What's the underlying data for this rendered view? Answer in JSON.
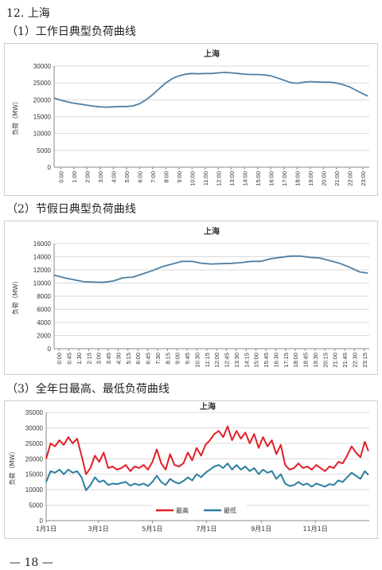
{
  "page": {
    "section_title": "12. 上海",
    "footer": "— 18 —"
  },
  "charts_meta": [
    {
      "heading": "（1）工作日典型负荷曲线"
    },
    {
      "heading": "（2）节假日典型负荷曲线"
    },
    {
      "heading": "（3）全年日最高、最低负荷曲线"
    }
  ],
  "chart_data": [
    {
      "type": "line",
      "title": "上海",
      "ylabel": "负荷（MW）",
      "xlabel": "",
      "ylim": [
        0,
        30000
      ],
      "yticks": [
        0,
        5000,
        10000,
        15000,
        20000,
        25000,
        30000
      ],
      "yticklabels": [
        "0",
        "5000",
        "10000",
        "15000",
        "20000",
        "25000",
        "30000"
      ],
      "xticklabels": [
        "0:00",
        "1:00",
        "2:00",
        "3:00",
        "4:00",
        "5:00",
        "6:00",
        "7:00",
        "8:00",
        "9:00",
        "10:00",
        "11:00",
        "12:00",
        "13:00",
        "14:00",
        "15:00",
        "16:00",
        "17:00",
        "18:00",
        "19:00",
        "20:00",
        "21:00",
        "22:00",
        "23:00"
      ],
      "grid": true,
      "series": [
        {
          "color": "#4f7fa3",
          "x": [
            0,
            0.5,
            1,
            1.5,
            2,
            2.5,
            3,
            3.5,
            4,
            4.5,
            5,
            5.5,
            6,
            6.5,
            7,
            7.5,
            8,
            8.5,
            9,
            9.5,
            10,
            10.5,
            11,
            11.5,
            12,
            12.5,
            13,
            13.5,
            14,
            14.5,
            15,
            15.5,
            16,
            16.5,
            17,
            17.5,
            18,
            18.5,
            19,
            19.5,
            20,
            20.5,
            21,
            21.5,
            22,
            22.5,
            23,
            23.5,
            23.9
          ],
          "values": [
            20500,
            19900,
            19400,
            19000,
            18700,
            18400,
            18100,
            17900,
            17800,
            17900,
            18000,
            18000,
            18200,
            18800,
            20000,
            21500,
            23300,
            25000,
            26300,
            27100,
            27600,
            27800,
            27700,
            27800,
            27800,
            28000,
            28100,
            28000,
            27800,
            27600,
            27500,
            27500,
            27400,
            27100,
            26500,
            25800,
            25100,
            24900,
            25200,
            25400,
            25300,
            25200,
            25200,
            25000,
            24500,
            23800,
            22800,
            21800,
            21100
          ]
        }
      ]
    },
    {
      "type": "line",
      "title": "上海",
      "ylabel": "负荷（MW）",
      "xlabel": "",
      "ylim": [
        0,
        16000
      ],
      "yticks": [
        0,
        2000,
        4000,
        6000,
        8000,
        10000,
        12000,
        14000,
        16000
      ],
      "yticklabels": [
        "0",
        "2000",
        "4000",
        "6000",
        "8000",
        "10000",
        "12000",
        "14000",
        "16000"
      ],
      "xticklabels": [
        "0:00",
        "0:45",
        "1:30",
        "2:15",
        "3:00",
        "3:45",
        "4:30",
        "5:15",
        "6:00",
        "6:45",
        "7:30",
        "8:15",
        "9:00",
        "9:45",
        "10:30",
        "11:15",
        "12:00",
        "12:45",
        "13:30",
        "14:15",
        "15:00",
        "15:45",
        "16:30",
        "17:15",
        "18:00",
        "18:45",
        "19:30",
        "20:15",
        "21:00",
        "21:45",
        "22:30",
        "23:15"
      ],
      "grid": true,
      "series": [
        {
          "color": "#4f7fa3",
          "x": [
            0,
            0.75,
            1.5,
            2.25,
            3,
            3.75,
            4.5,
            5.25,
            6,
            6.75,
            7.5,
            8.25,
            9,
            9.75,
            10.5,
            11.25,
            12,
            12.75,
            13.5,
            14.25,
            15,
            15.75,
            16.5,
            17.25,
            18,
            18.75,
            19.5,
            20.25,
            21,
            21.75,
            22.5,
            23.25,
            23.9
          ],
          "values": [
            11200,
            10800,
            10500,
            10200,
            10150,
            10100,
            10300,
            10800,
            10900,
            11400,
            11900,
            12500,
            12900,
            13300,
            13300,
            13000,
            12900,
            12950,
            13000,
            13100,
            13300,
            13300,
            13700,
            13900,
            14100,
            14100,
            13900,
            13800,
            13400,
            13000,
            12400,
            11700,
            11500
          ]
        }
      ]
    },
    {
      "type": "line",
      "title": "上海",
      "ylabel": "负荷（MW）",
      "xlabel": "",
      "ylim": [
        0,
        35000
      ],
      "yticks": [
        0,
        5000,
        10000,
        15000,
        20000,
        25000,
        30000,
        35000
      ],
      "yticklabels": [
        "0",
        "5000",
        "10000",
        "15000",
        "20000",
        "25000",
        "30000",
        "35000"
      ],
      "xticklabels": [
        "1月1日",
        "3月1日",
        "5月1日",
        "7月1日",
        "9月1日",
        "11月1日"
      ],
      "xtickdays": [
        0,
        59,
        120,
        181,
        243,
        304
      ],
      "legend": "bottom",
      "grid": true,
      "series": [
        {
          "name": "最高",
          "color": "#e21f26",
          "x": [
            0,
            5,
            10,
            15,
            20,
            25,
            30,
            35,
            40,
            45,
            50,
            55,
            60,
            65,
            70,
            75,
            80,
            85,
            90,
            95,
            100,
            105,
            110,
            115,
            120,
            125,
            130,
            135,
            140,
            145,
            150,
            155,
            160,
            165,
            170,
            175,
            180,
            185,
            190,
            195,
            200,
            205,
            210,
            215,
            220,
            225,
            230,
            235,
            240,
            245,
            250,
            255,
            260,
            265,
            270,
            275,
            280,
            285,
            290,
            295,
            300,
            305,
            310,
            315,
            320,
            325,
            330,
            335,
            340,
            345,
            350,
            355,
            360,
            364
          ],
          "values": [
            20000,
            25000,
            24000,
            26000,
            24500,
            27000,
            25000,
            26500,
            21000,
            15000,
            17000,
            21000,
            19000,
            22000,
            17000,
            17500,
            16500,
            17000,
            18000,
            16000,
            17500,
            17000,
            18000,
            16500,
            19000,
            23000,
            18500,
            16500,
            21500,
            18000,
            17500,
            18500,
            22000,
            19500,
            23500,
            21000,
            24500,
            26000,
            28000,
            29000,
            27000,
            30500,
            26000,
            29000,
            26500,
            28500,
            25000,
            28000,
            23500,
            27000,
            24000,
            26000,
            21500,
            24500,
            18000,
            16500,
            17000,
            18500,
            17000,
            17500,
            16500,
            18000,
            17000,
            16000,
            17500,
            17000,
            19000,
            18500,
            21000,
            24000,
            22000,
            20500,
            25500,
            22500
          ]
        },
        {
          "name": "最低",
          "color": "#2a7f9f",
          "x": [
            0,
            5,
            10,
            15,
            20,
            25,
            30,
            35,
            40,
            45,
            50,
            55,
            60,
            65,
            70,
            75,
            80,
            85,
            90,
            95,
            100,
            105,
            110,
            115,
            120,
            125,
            130,
            135,
            140,
            145,
            150,
            155,
            160,
            165,
            170,
            175,
            180,
            185,
            190,
            195,
            200,
            205,
            210,
            215,
            220,
            225,
            230,
            235,
            240,
            245,
            250,
            255,
            260,
            265,
            270,
            275,
            280,
            285,
            290,
            295,
            300,
            305,
            310,
            315,
            320,
            325,
            330,
            335,
            340,
            345,
            350,
            355,
            360,
            364
          ],
          "values": [
            12500,
            16000,
            15500,
            16500,
            15000,
            16500,
            15500,
            16000,
            14000,
            9800,
            11500,
            14000,
            12500,
            13000,
            11500,
            12000,
            11800,
            12200,
            12500,
            11300,
            12000,
            11500,
            12000,
            11200,
            12500,
            14500,
            12500,
            11500,
            13500,
            12500,
            12000,
            12800,
            14000,
            13000,
            15000,
            14000,
            15500,
            16500,
            17500,
            18000,
            17000,
            18500,
            16500,
            18000,
            16500,
            17500,
            16000,
            17000,
            15000,
            16500,
            15500,
            16000,
            13500,
            15000,
            12000,
            11200,
            11500,
            12500,
            11500,
            12000,
            11000,
            12000,
            11500,
            11000,
            11800,
            11500,
            13000,
            12500,
            14000,
            15500,
            14500,
            13500,
            16000,
            14800
          ]
        }
      ]
    }
  ]
}
